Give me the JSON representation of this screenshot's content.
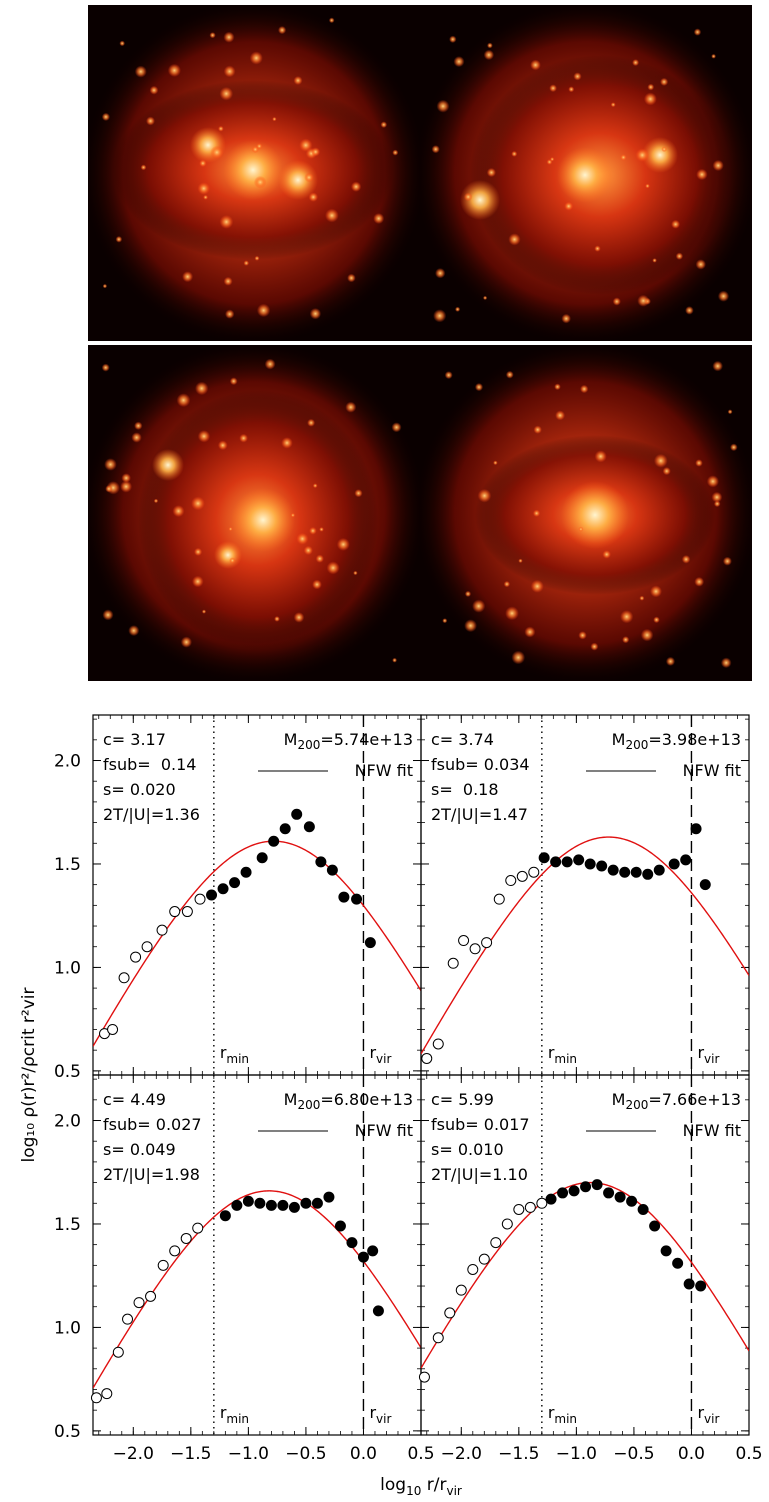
{
  "images": [
    {
      "name": "halo-image-1"
    },
    {
      "name": "halo-image-2"
    },
    {
      "name": "halo-image-3"
    },
    {
      "name": "halo-image-4"
    }
  ],
  "axes": {
    "xlim": [
      -2.35,
      0.5
    ],
    "ylim": [
      0.48,
      2.22
    ],
    "xticks": [
      -2.0,
      -1.5,
      -1.0,
      -0.5,
      0.0,
      0.5
    ],
    "xtick_labels": [
      "−2.0",
      "−1.5",
      "−1.0",
      "−0.5",
      "0.0",
      "0.5"
    ],
    "yticks": [
      0.5,
      1.0,
      1.5,
      2.0
    ],
    "ytick_labels": [
      "0.5",
      "1.0",
      "1.5",
      "2.0"
    ],
    "xlabel": {
      "main": "log",
      "sub": "10",
      "rest": " r/r",
      "sub2": "vir"
    },
    "ylabel": "log₁₀ ρ(r)r²/ρcrit r²vir",
    "legend_text": "NFW fit",
    "rmin_label": {
      "main": "r",
      "sub": "min"
    },
    "rvir_label": {
      "main": "r",
      "sub": "vir"
    }
  },
  "chart_data": [
    {
      "type": "scatter",
      "c": "c= 3.17",
      "fsub": "fsub=  0.14",
      "s": "s= 0.020",
      "virial": "2T/|U|=1.36",
      "mass": {
        "prefix": "M",
        "sub": "200",
        "value": "=5.74e+13"
      },
      "rmin": -1.3,
      "rvir": 0.0,
      "nfw": {
        "peak_x": -0.78,
        "peak_y": 1.61
      },
      "open_points": [
        [
          -2.25,
          0.68
        ],
        [
          -2.18,
          0.7
        ],
        [
          -2.08,
          0.95
        ],
        [
          -1.98,
          1.05
        ],
        [
          -1.88,
          1.1
        ],
        [
          -1.75,
          1.18
        ],
        [
          -1.64,
          1.27
        ],
        [
          -1.53,
          1.27
        ],
        [
          -1.42,
          1.33
        ]
      ],
      "filled_points": [
        [
          -1.32,
          1.35
        ],
        [
          -1.22,
          1.38
        ],
        [
          -1.12,
          1.41
        ],
        [
          -1.02,
          1.46
        ],
        [
          -0.88,
          1.53
        ],
        [
          -0.78,
          1.61
        ],
        [
          -0.68,
          1.67
        ],
        [
          -0.58,
          1.74
        ],
        [
          -0.47,
          1.68
        ],
        [
          -0.37,
          1.51
        ],
        [
          -0.27,
          1.47
        ],
        [
          -0.17,
          1.34
        ],
        [
          -0.06,
          1.33
        ],
        [
          0.06,
          1.12
        ]
      ]
    },
    {
      "type": "scatter",
      "c": "c= 3.74",
      "fsub": "fsub= 0.034",
      "s": "s=  0.18",
      "virial": "2T/|U|=1.47",
      "mass": {
        "prefix": "M",
        "sub": "200",
        "value": "=3.98e+13"
      },
      "rmin": -1.3,
      "rvir": 0.0,
      "nfw": {
        "peak_x": -0.72,
        "peak_y": 1.63
      },
      "open_points": [
        [
          -2.3,
          0.56
        ],
        [
          -2.2,
          0.63
        ],
        [
          -2.07,
          1.02
        ],
        [
          -1.98,
          1.13
        ],
        [
          -1.88,
          1.09
        ],
        [
          -1.78,
          1.12
        ],
        [
          -1.67,
          1.33
        ],
        [
          -1.57,
          1.42
        ],
        [
          -1.47,
          1.44
        ],
        [
          -1.37,
          1.46
        ]
      ],
      "filled_points": [
        [
          -1.28,
          1.53
        ],
        [
          -1.18,
          1.51
        ],
        [
          -1.08,
          1.51
        ],
        [
          -0.98,
          1.52
        ],
        [
          -0.88,
          1.5
        ],
        [
          -0.78,
          1.49
        ],
        [
          -0.68,
          1.47
        ],
        [
          -0.58,
          1.46
        ],
        [
          -0.48,
          1.46
        ],
        [
          -0.38,
          1.45
        ],
        [
          -0.28,
          1.47
        ],
        [
          -0.15,
          1.5
        ],
        [
          -0.05,
          1.52
        ],
        [
          0.04,
          1.67
        ],
        [
          0.12,
          1.4
        ]
      ]
    },
    {
      "type": "scatter",
      "c": "c= 4.49",
      "fsub": "fsub= 0.027",
      "s": "s= 0.049",
      "virial": "2T/|U|=1.98",
      "mass": {
        "prefix": "M",
        "sub": "200",
        "value": "=6.80e+13"
      },
      "rmin": -1.3,
      "rvir": 0.0,
      "nfw": {
        "peak_x": -0.82,
        "peak_y": 1.66
      },
      "open_points": [
        [
          -2.32,
          0.66
        ],
        [
          -2.23,
          0.68
        ],
        [
          -2.13,
          0.88
        ],
        [
          -2.05,
          1.04
        ],
        [
          -1.95,
          1.12
        ],
        [
          -1.85,
          1.15
        ],
        [
          -1.74,
          1.3
        ],
        [
          -1.64,
          1.37
        ],
        [
          -1.54,
          1.43
        ],
        [
          -1.44,
          1.48
        ]
      ],
      "filled_points": [
        [
          -1.2,
          1.54
        ],
        [
          -1.1,
          1.59
        ],
        [
          -1.0,
          1.61
        ],
        [
          -0.9,
          1.6
        ],
        [
          -0.8,
          1.59
        ],
        [
          -0.7,
          1.59
        ],
        [
          -0.6,
          1.58
        ],
        [
          -0.5,
          1.6
        ],
        [
          -0.4,
          1.6
        ],
        [
          -0.3,
          1.63
        ],
        [
          -0.2,
          1.49
        ],
        [
          -0.1,
          1.41
        ],
        [
          0.0,
          1.34
        ],
        [
          0.08,
          1.37
        ],
        [
          0.13,
          1.08
        ]
      ]
    },
    {
      "type": "scatter",
      "c": "c= 5.99",
      "fsub": "fsub= 0.017",
      "s": "s= 0.010",
      "virial": "2T/|U|=1.10",
      "mass": {
        "prefix": "M",
        "sub": "200",
        "value": "=7.66e+13"
      },
      "rmin": -1.3,
      "rvir": 0.0,
      "nfw": {
        "peak_x": -0.88,
        "peak_y": 1.7
      },
      "open_points": [
        [
          -2.32,
          0.76
        ],
        [
          -2.2,
          0.95
        ],
        [
          -2.1,
          1.07
        ],
        [
          -2.0,
          1.18
        ],
        [
          -1.9,
          1.28
        ],
        [
          -1.8,
          1.33
        ],
        [
          -1.7,
          1.41
        ],
        [
          -1.6,
          1.5
        ],
        [
          -1.5,
          1.57
        ],
        [
          -1.4,
          1.58
        ],
        [
          -1.3,
          1.6
        ]
      ],
      "filled_points": [
        [
          -1.22,
          1.62
        ],
        [
          -1.12,
          1.65
        ],
        [
          -1.02,
          1.66
        ],
        [
          -0.92,
          1.68
        ],
        [
          -0.82,
          1.69
        ],
        [
          -0.72,
          1.65
        ],
        [
          -0.62,
          1.63
        ],
        [
          -0.52,
          1.61
        ],
        [
          -0.42,
          1.57
        ],
        [
          -0.32,
          1.49
        ],
        [
          -0.22,
          1.37
        ],
        [
          -0.12,
          1.31
        ],
        [
          -0.02,
          1.21
        ],
        [
          0.08,
          1.2
        ]
      ]
    }
  ]
}
